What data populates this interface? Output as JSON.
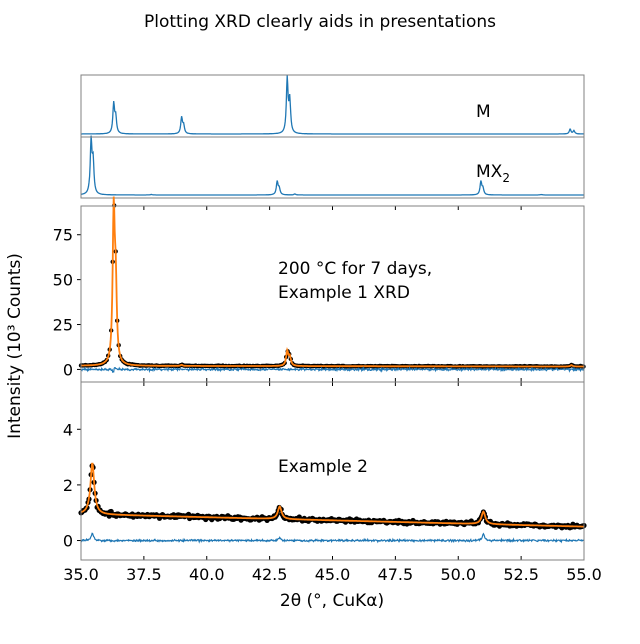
{
  "chart_data": {
    "title": "Plotting XRD clearly aids in presentations",
    "xlabel": "2θ (°, CuKα)",
    "ylabel": "Intensity (10³ Counts)",
    "xlim": [
      35.0,
      55.0
    ],
    "xticks": [
      "35.0",
      "37.5",
      "40.0",
      "42.5",
      "45.0",
      "47.5",
      "50.0",
      "52.5",
      "55.0"
    ],
    "colors": {
      "observed": "#000000",
      "fit": "#ff7f0e",
      "difference": "#1f77b4",
      "reference": "#1f77b4",
      "frame": "#808080"
    },
    "panels": [
      {
        "type": "line",
        "label": "M",
        "yticks_shown": false,
        "peaks": [
          [
            36.3,
            0.55
          ],
          [
            36.38,
            0.3
          ],
          [
            39.0,
            0.3
          ],
          [
            39.08,
            0.15
          ],
          [
            43.2,
            1.0
          ],
          [
            43.3,
            0.6
          ],
          [
            54.45,
            0.09
          ],
          [
            54.6,
            0.06
          ]
        ]
      },
      {
        "type": "line",
        "label": "MX",
        "label_sub": "2",
        "yticks_shown": false,
        "peaks": [
          [
            35.4,
            1.0
          ],
          [
            35.48,
            0.6
          ],
          [
            37.8,
            0.01
          ],
          [
            42.8,
            0.25
          ],
          [
            42.88,
            0.12
          ],
          [
            43.5,
            0.02
          ],
          [
            50.9,
            0.25
          ],
          [
            50.98,
            0.12
          ],
          [
            53.3,
            0.01
          ]
        ]
      },
      {
        "type": "scatter+line",
        "label_lines": [
          "200  °C for 7 days,",
          "Example 1 XRD"
        ],
        "ylim": [
          -7,
          91
        ],
        "yticks": [
          0,
          25,
          50,
          75
        ],
        "background": [
          2.0,
          1.6
        ],
        "peaks": [
          [
            36.3,
            83
          ],
          [
            36.38,
            40
          ],
          [
            39.0,
            0.6
          ],
          [
            43.2,
            8
          ],
          [
            43.3,
            5
          ],
          [
            54.5,
            0.8
          ]
        ],
        "series": [
          "observed",
          "fit",
          "difference"
        ]
      },
      {
        "type": "scatter+line",
        "label_lines": [
          "Example 2"
        ],
        "ylim": [
          -0.7,
          5.7
        ],
        "yticks": [
          0,
          2,
          4
        ],
        "background": [
          0.95,
          0.5
        ],
        "peaks": [
          [
            35.45,
            1.85
          ],
          [
            42.9,
            0.45
          ],
          [
            51.0,
            0.45
          ]
        ],
        "diff_peaks": [
          [
            35.45,
            0.3
          ],
          [
            51.0,
            0.25
          ],
          [
            42.9,
            0.12
          ]
        ],
        "series": [
          "observed",
          "fit",
          "difference"
        ]
      }
    ]
  }
}
